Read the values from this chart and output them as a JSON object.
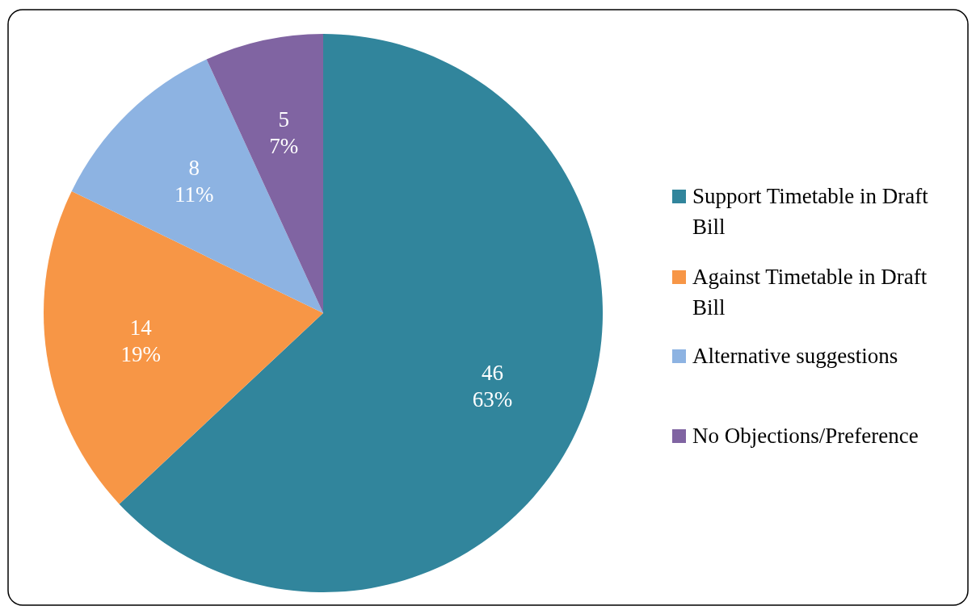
{
  "chart_data": {
    "type": "pie",
    "categories": [
      "Support Timetable in Draft Bill",
      "Against Timetable in Draft Bill",
      "Alternative suggestions",
      "No Objections/Preference"
    ],
    "values": [
      46,
      14,
      8,
      5
    ],
    "colors": [
      "#31859c",
      "#f79646",
      "#8db3e2",
      "#8064a2"
    ],
    "value_labels": [
      "46\n63%",
      "14\n19%",
      "8\n11%",
      "5\n7%"
    ],
    "legend": "right"
  }
}
